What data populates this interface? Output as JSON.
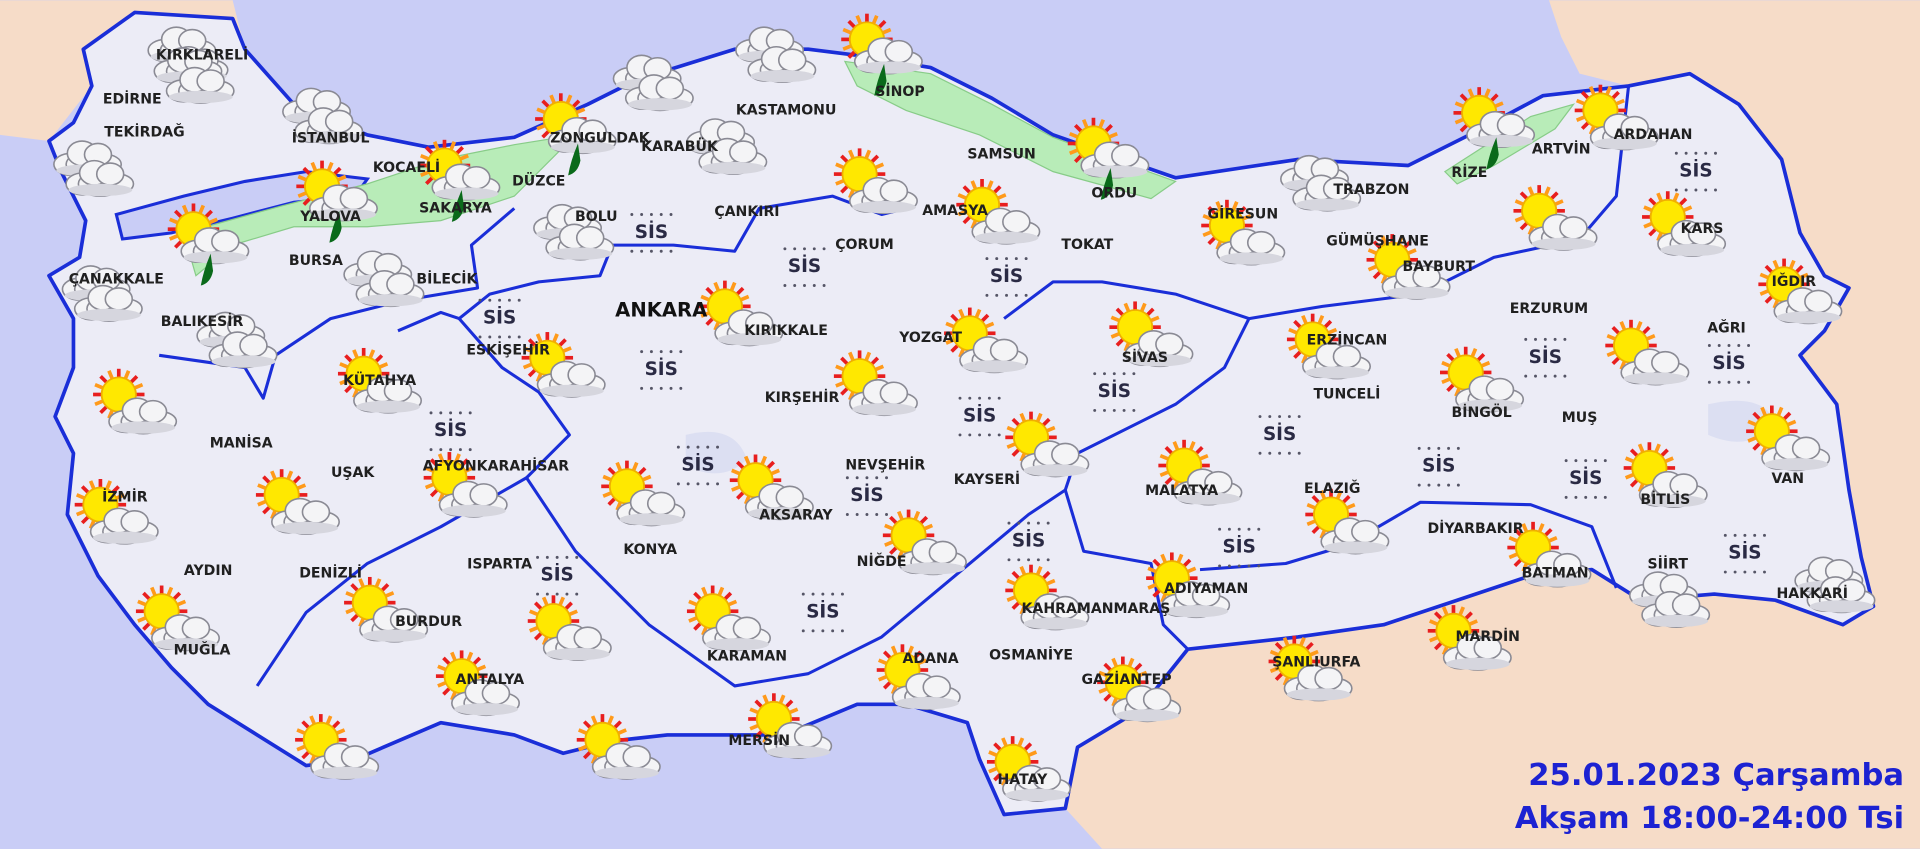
{
  "map": {
    "cities": [
      "KIRKLARELİ",
      "EDİRNE",
      "TEKİRDAĞ",
      "İSTANBUL",
      "KOCAELİ",
      "YALOVA",
      "SAKARYA",
      "BURSA",
      "ÇANAKKALE",
      "BALIKESİR",
      "BİLECİK",
      "DÜZCE",
      "ZONGULDAK",
      "KARABÜK",
      "BOLU",
      "KASTAMONU",
      "SİNOP",
      "SAMSUN",
      "ORDU",
      "AMASYA",
      "ÇANKIRI",
      "ÇORUM",
      "TOKAT",
      "GİRESUN",
      "TRABZON",
      "RİZE",
      "ARTVİN",
      "ARDAHAN",
      "KARS",
      "IĞDIR",
      "GÜMÜŞHANE",
      "BAYBURT",
      "ERZURUM",
      "ERZİNCAN",
      "AĞRI",
      "TUNCELİ",
      "BİNGÖL",
      "MUŞ",
      "BİTLİS",
      "VAN",
      "SİİRT",
      "HAKKARİ",
      "BATMAN",
      "MARDİN",
      "DİYARBAKIR",
      "ELAZIĞ",
      "MALATYA",
      "ADIYAMAN",
      "ŞANLIURFA",
      "GAZİANTEP",
      "KAHRAMANMARAŞ",
      "OSMANİYE",
      "HATAY",
      "ADANA",
      "MERSİN",
      "KARAMAN",
      "NİĞDE",
      "AKSARAY",
      "NEVŞEHİR",
      "KAYSERİ",
      "KIRŞEHİR",
      "YOZGAT",
      "SİVAS",
      "KIRIKKALE",
      "ESKİŞEHİR",
      "KÜTAHYA",
      "AFYONKARAHİSAR",
      "UŞAK",
      "MANİSA",
      "İZMİR",
      "AYDIN",
      "DENİZLİ",
      "MUĞLA",
      "BURDUR",
      "ISPARTA",
      "ANTALYA",
      "KONYA"
    ],
    "capital": "ANKARA",
    "fog_labels": [
      "SİS",
      "SİS",
      "SİS",
      "SİS",
      "SİS",
      "SİS",
      "SİS",
      "SİS",
      "SİS",
      "SİS",
      "SİS",
      "SİS",
      "SİS",
      "SİS",
      "SİS",
      "SİS",
      "SİS",
      "SİS",
      "SİS",
      "SİS",
      "SİS"
    ],
    "date": "25.01.2023 Çarşamba",
    "period": "Akşam 18:00-24:00 Tsi"
  }
}
